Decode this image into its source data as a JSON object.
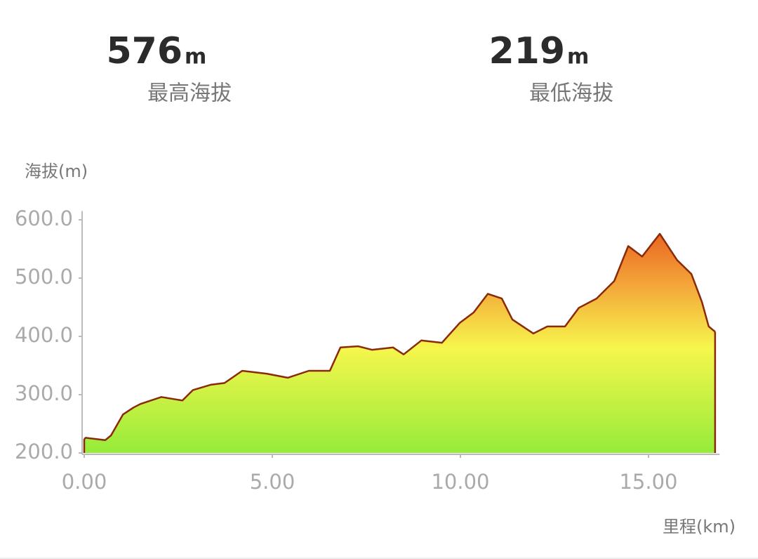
{
  "stats": [
    {
      "value": 576,
      "unit": "m",
      "label": "最高海拔"
    },
    {
      "value": 219,
      "unit": "m",
      "label": "最低海拔"
    }
  ],
  "chart_data": {
    "type": "area",
    "y_label": "海拔(m)",
    "x_label": "里程(km)",
    "x": [
      0,
      0.04,
      0.56,
      0.71,
      1.03,
      1.31,
      1.49,
      2.05,
      2.61,
      2.89,
      3.36,
      3.73,
      4.2,
      4.85,
      5.41,
      5.97,
      6.53,
      6.81,
      7.28,
      7.65,
      8.21,
      8.49,
      8.96,
      9.51,
      9.98,
      10.35,
      10.73,
      11.1,
      11.38,
      11.94,
      12.31,
      12.78,
      13.15,
      13.62,
      14.09,
      14.46,
      14.83,
      15.3,
      15.76,
      16.14,
      16.42,
      16.6,
      16.77
    ],
    "values": [
      224,
      226,
      222,
      230,
      266,
      278,
      284,
      296,
      290,
      308,
      317,
      320,
      341,
      336,
      329,
      341,
      341,
      381,
      383,
      377,
      381,
      369,
      393,
      389,
      423,
      441,
      473,
      465,
      429,
      405,
      417,
      417,
      449,
      465,
      495,
      555,
      537,
      576,
      531,
      507,
      459,
      417,
      408
    ],
    "color": "#8b2a0a",
    "xlim": [
      0,
      16.85
    ],
    "ylim": [
      200,
      615
    ],
    "xticks": [
      {
        "value": 0,
        "label": "0.00"
      },
      {
        "value": 5,
        "label": "5.00"
      },
      {
        "value": 10,
        "label": "10.00"
      },
      {
        "value": 15,
        "label": "15.00"
      }
    ],
    "yticks": [
      {
        "value": 200,
        "label": "200.0"
      },
      {
        "value": 300,
        "label": "300.0"
      },
      {
        "value": 400,
        "label": "400.0"
      },
      {
        "value": 500,
        "label": "500.0"
      },
      {
        "value": 600,
        "label": "600.0"
      }
    ]
  }
}
